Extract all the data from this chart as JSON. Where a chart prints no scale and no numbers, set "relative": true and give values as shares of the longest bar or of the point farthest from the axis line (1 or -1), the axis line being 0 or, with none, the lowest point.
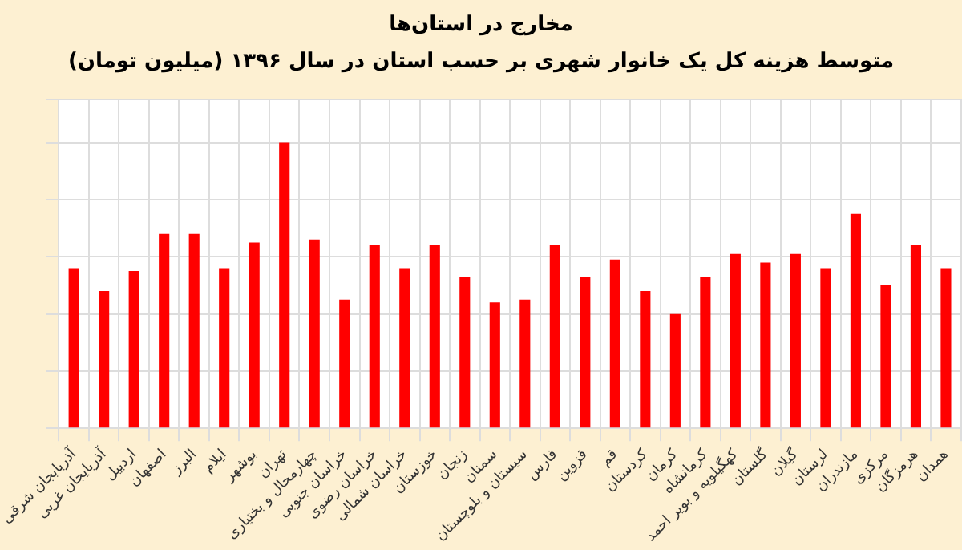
{
  "chart_data": {
    "type": "bar",
    "title": "مخارج در استان‌ها",
    "subtitle": "متوسط هزینه کل یک خانوار شهری بر حسب استان در سال ۱۳۹۶ (میلیون تومان)",
    "categories": [
      "آذربایجان شرقی",
      "آذربایجان غربی",
      "اردبیل",
      "اصفهان",
      "البرز",
      "ایلام",
      "بوشهر",
      "تهران",
      "چهارمحال و بختیاری",
      "خراسان جنوبی",
      "خراسان رضوی",
      "خراسان شمالی",
      "خوزستان",
      "زنجان",
      "سمنان",
      "سیستان و بلوچستان",
      "فارس",
      "قزوین",
      "قم",
      "کردستان",
      "کرمان",
      "کرمانشاه",
      "کهگیلویه و بویر احمد",
      "گلستان",
      "گیلان",
      "لرستان",
      "مازندران",
      "مرکزی",
      "هرمزگان",
      "همدان"
    ],
    "values": [
      0.56,
      0.48,
      0.55,
      0.68,
      0.68,
      0.56,
      0.65,
      1,
      0.66,
      0.45,
      0.64,
      0.56,
      0.64,
      0.53,
      0.44,
      0.45,
      0.64,
      0.53,
      0.59,
      0.48,
      0.4,
      0.53,
      0.61,
      0.58,
      0.61,
      0.56,
      0.75,
      0.5,
      0.64,
      0.56
    ],
    "color": "#ff0000",
    "relative": true,
    "grid": true
  }
}
